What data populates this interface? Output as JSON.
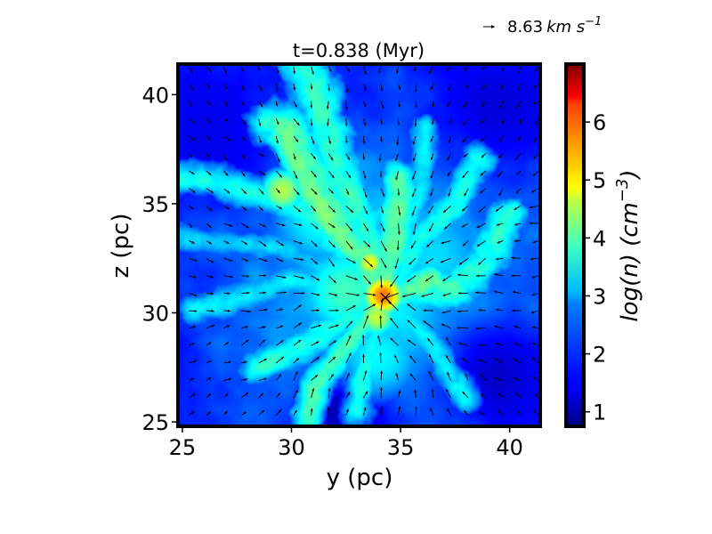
{
  "chart_data": {
    "type": "heatmap",
    "title": "t=0.838 (Myr)",
    "xlabel": "y (pc)",
    "ylabel": "z (pc)",
    "xlim": [
      24.8,
      41.4
    ],
    "ylim": [
      24.8,
      41.4
    ],
    "x_ticks": [
      25,
      30,
      35,
      40
    ],
    "y_ticks": [
      25,
      30,
      35,
      40
    ],
    "colorbar": {
      "label": "log(n) (cm^-3)",
      "label_parts": {
        "main": "log(n) (cm",
        "exp": "−3",
        "close": ")"
      },
      "range": [
        0.75,
        7.0
      ],
      "ticks": [
        1,
        2,
        3,
        4,
        5,
        6
      ],
      "colormap": "jet"
    },
    "quiver_key": {
      "label": "8.63 km s^-1",
      "value": "8.63",
      "unit_main": "km s",
      "unit_exp": "−1"
    },
    "center": [
      34.3,
      30.7
    ],
    "background_log_n": 1.7,
    "filaments": [
      {
        "points": [
          [
            34.3,
            30.7
          ],
          [
            33.5,
            33.5
          ],
          [
            32.0,
            37.0
          ],
          [
            31.2,
            40.0
          ],
          [
            30.5,
            41.4
          ]
        ],
        "width": 0.9,
        "log_n": 3.4
      },
      {
        "points": [
          [
            34.3,
            30.7
          ],
          [
            32.8,
            33.0
          ],
          [
            31.5,
            35.5
          ],
          [
            30.0,
            38.5
          ],
          [
            29.0,
            38.8
          ]
        ],
        "width": 0.8,
        "log_n": 3.5
      },
      {
        "points": [
          [
            34.3,
            30.7
          ],
          [
            30.5,
            34.7
          ],
          [
            27.5,
            35.8
          ],
          [
            25.0,
            36.2
          ]
        ],
        "width": 0.7,
        "log_n": 3.2
      },
      {
        "points": [
          [
            34.3,
            30.7
          ],
          [
            29.5,
            33.0
          ],
          [
            26.5,
            33.2
          ],
          [
            25.0,
            33.5
          ]
        ],
        "width": 0.6,
        "log_n": 2.8
      },
      {
        "points": [
          [
            34.3,
            30.7
          ],
          [
            30.0,
            31.5
          ],
          [
            27.0,
            30.5
          ],
          [
            25.5,
            30.2
          ]
        ],
        "width": 0.7,
        "log_n": 3.0
      },
      {
        "points": [
          [
            34.3,
            30.7
          ],
          [
            31.5,
            29.0
          ],
          [
            30.0,
            28.2
          ],
          [
            28.5,
            27.5
          ]
        ],
        "width": 0.7,
        "log_n": 3.3
      },
      {
        "points": [
          [
            34.3,
            30.7
          ],
          [
            32.5,
            28.5
          ],
          [
            31.0,
            26.5
          ],
          [
            30.8,
            25.0
          ]
        ],
        "width": 0.6,
        "log_n": 3.5
      },
      {
        "points": [
          [
            34.3,
            30.7
          ],
          [
            33.5,
            28.0
          ],
          [
            33.0,
            25.5
          ]
        ],
        "width": 0.6,
        "log_n": 3.2
      },
      {
        "points": [
          [
            34.3,
            30.7
          ],
          [
            36.5,
            28.5
          ],
          [
            38.0,
            26.0
          ]
        ],
        "width": 0.6,
        "log_n": 3.0
      },
      {
        "points": [
          [
            34.3,
            30.7
          ],
          [
            37.0,
            31.0
          ],
          [
            38.5,
            31.8
          ],
          [
            39.5,
            33.5
          ],
          [
            40.0,
            34.5
          ]
        ],
        "width": 0.8,
        "log_n": 3.3
      },
      {
        "points": [
          [
            34.3,
            30.7
          ],
          [
            36.0,
            33.5
          ],
          [
            37.5,
            35.0
          ],
          [
            38.5,
            37.0
          ]
        ],
        "width": 0.7,
        "log_n": 3.2
      },
      {
        "points": [
          [
            34.3,
            30.7
          ],
          [
            35.5,
            34.5
          ],
          [
            36.0,
            36.5
          ],
          [
            36.2,
            38.5
          ]
        ],
        "width": 0.6,
        "log_n": 3.0
      },
      {
        "points": [
          [
            34.3,
            30.7
          ],
          [
            34.8,
            34.0
          ],
          [
            35.0,
            36.0
          ]
        ],
        "width": 0.8,
        "log_n": 3.6
      },
      {
        "points": [
          [
            34.3,
            30.7
          ],
          [
            36.5,
            31.5
          ],
          [
            37.5,
            31.0
          ]
        ],
        "width": 0.7,
        "log_n": 3.6
      },
      {
        "points": [
          [
            29.5,
            38.5
          ],
          [
            30.8,
            36.0
          ],
          [
            31.8,
            34.0
          ],
          [
            33.0,
            32.8
          ]
        ],
        "width": 0.7,
        "log_n": 3.8
      }
    ],
    "clumps": [
      {
        "center": [
          34.2,
          30.8
        ],
        "sigma": 0.45,
        "log_n": 5.5
      },
      {
        "center": [
          33.6,
          32.3
        ],
        "sigma": 0.35,
        "log_n": 4.6
      },
      {
        "center": [
          33.9,
          29.8
        ],
        "sigma": 0.5,
        "log_n": 4.3
      },
      {
        "center": [
          29.6,
          35.6
        ],
        "sigma": 0.6,
        "log_n": 4.2
      },
      {
        "center": [
          32.5,
          31.0
        ],
        "sigma": 1.5,
        "log_n": 3.5
      },
      {
        "center": [
          31.5,
          34.5
        ],
        "sigma": 1.8,
        "log_n": 3.2
      },
      {
        "center": [
          36.5,
          32.5
        ],
        "sigma": 2.0,
        "log_n": 2.9
      },
      {
        "center": [
          34.0,
          28.0
        ],
        "sigma": 1.5,
        "log_n": 3.1
      }
    ],
    "voids": [
      {
        "center": [
          32.5,
          25.5
        ],
        "sigma": 1.6,
        "log_n": 1.0
      },
      {
        "center": [
          39.5,
          27.0
        ],
        "sigma": 2.0,
        "log_n": 1.2
      },
      {
        "center": [
          26.5,
          38.0
        ],
        "sigma": 1.8,
        "log_n": 1.4
      },
      {
        "center": [
          39.5,
          39.5
        ],
        "sigma": 2.0,
        "log_n": 1.3
      }
    ],
    "sink_marker": [
      34.3,
      30.7
    ]
  }
}
